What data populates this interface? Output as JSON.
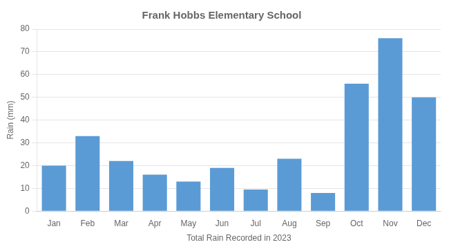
{
  "chart_data": {
    "type": "bar",
    "title": "Frank Hobbs Elementary School",
    "xlabel": "Total Rain Recorded in 2023",
    "ylabel": "Rain (mm)",
    "categories": [
      "Jan",
      "Feb",
      "Mar",
      "Apr",
      "May",
      "Jun",
      "Jul",
      "Aug",
      "Sep",
      "Oct",
      "Nov",
      "Dec"
    ],
    "values": [
      20,
      33,
      22,
      16,
      13,
      19,
      9.5,
      23,
      8,
      56,
      76,
      50
    ],
    "color": "#5B9BD5",
    "ylim": [
      0,
      80
    ],
    "yticks": [
      0,
      10,
      20,
      30,
      40,
      50,
      60,
      70,
      80
    ],
    "grid": true
  }
}
